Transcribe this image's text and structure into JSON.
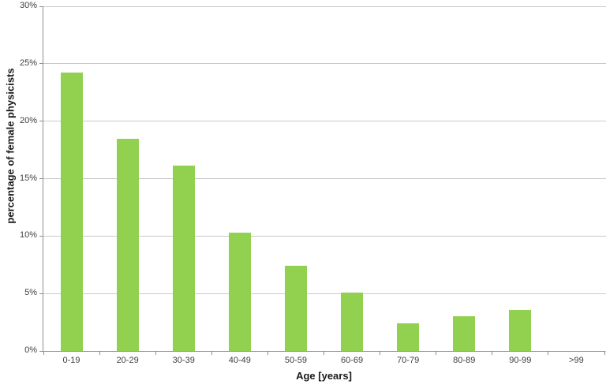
{
  "chart_data": {
    "type": "bar",
    "title": "",
    "xlabel": "Age [years]",
    "ylabel": "percentage of female physicists",
    "categories": [
      "0-19",
      "20-29",
      "30-39",
      "40-49",
      "50-59",
      "60-69",
      "70-79",
      "80-89",
      "90-99",
      ">99"
    ],
    "values": [
      24.2,
      18.5,
      16.1,
      10.3,
      7.4,
      5.1,
      2.4,
      3.0,
      3.6,
      0
    ],
    "ylim": [
      0,
      30
    ],
    "y_ticks": [
      {
        "value": 0,
        "label": "0%"
      },
      {
        "value": 5,
        "label": "5%"
      },
      {
        "value": 10,
        "label": "10%"
      },
      {
        "value": 15,
        "label": "15%"
      },
      {
        "value": 20,
        "label": "20%"
      },
      {
        "value": 25,
        "label": "25%"
      },
      {
        "value": 30,
        "label": "30%"
      }
    ],
    "grid": true,
    "legend": false,
    "colors": {
      "bar": "#92D050",
      "gridline": "#C9C9C9",
      "axis": "#8E8E8E",
      "tick_label": "#404040",
      "axis_title": "#1A1A1A",
      "background": "#FFFFFF"
    }
  }
}
